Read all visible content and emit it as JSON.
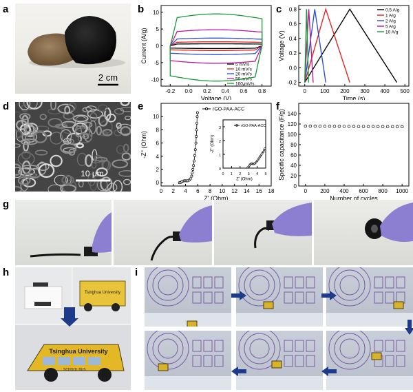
{
  "panel_labels": [
    "a",
    "b",
    "c",
    "d",
    "e",
    "f",
    "g",
    "h",
    "i"
  ],
  "panel_a": {
    "scale_text": "2 cm"
  },
  "panel_d": {
    "scale_text": "10 μm"
  },
  "panel_h": {
    "bus_text": "Tsinghua University",
    "small_bus_text": "Tsinghua University",
    "bus_side_text": "SCHOOL BUS"
  },
  "chart_data": [
    {
      "id": "b",
      "type": "line",
      "xlabel": "Voltage (V)",
      "ylabel": "Current (A/g)",
      "xlim": [
        -0.3,
        0.9
      ],
      "ylim": [
        -12,
        12
      ],
      "xticks": [
        "-0.2",
        "0.0",
        "0.2",
        "0.4",
        "0.6",
        "0.8"
      ],
      "yticks": [
        "-10",
        "-5",
        "0",
        "5",
        "10"
      ],
      "series": [
        {
          "name": "5 mV/s",
          "color": "#000000",
          "upper": 0.6,
          "lower": -0.8
        },
        {
          "name": "10 mV/s",
          "color": "#e8201c",
          "upper": 1.2,
          "lower": -1.4
        },
        {
          "name": "20 mV/s",
          "color": "#2a4fd6",
          "upper": 2.3,
          "lower": -2.6
        },
        {
          "name": "50 mV/s",
          "color": "#c2189f",
          "upper": 4.8,
          "lower": -5.2
        },
        {
          "name": "100 mV/s",
          "color": "#1a9a36",
          "upper": 9.5,
          "lower": -10.5
        }
      ]
    },
    {
      "id": "c",
      "type": "line",
      "xlabel": "Time (s)",
      "ylabel": "Voltage (V)",
      "xlim": [
        -30,
        520
      ],
      "ylim": [
        -0.25,
        0.85
      ],
      "xticks": [
        "0",
        "100",
        "200",
        "300",
        "400",
        "500"
      ],
      "yticks": [
        "-0.2",
        "0.0",
        "0.2",
        "0.4",
        "0.6",
        "0.8"
      ],
      "series": [
        {
          "name": "0.5 A/g",
          "color": "#000000",
          "t_peak": 225,
          "t_end": 460
        },
        {
          "name": "1 A/g",
          "color": "#e8201c",
          "t_peak": 105,
          "t_end": 225
        },
        {
          "name": "2 A/g",
          "color": "#2a4fd6",
          "t_peak": 50,
          "t_end": 105
        },
        {
          "name": "5 A/g",
          "color": "#c2189f",
          "t_peak": 20,
          "t_end": 42
        },
        {
          "name": "10 A/g",
          "color": "#1a9a36",
          "t_peak": 9,
          "t_end": 19
        }
      ]
    },
    {
      "id": "e",
      "type": "scatter",
      "xlabel": "Z' (Ohm)",
      "ylabel": "-Z\" (Ohm)",
      "xlim": [
        0,
        18
      ],
      "ylim": [
        -0.5,
        12
      ],
      "xticks": [
        "0",
        "2",
        "4",
        "6",
        "8",
        "10",
        "12",
        "14",
        "16",
        "18"
      ],
      "yticks": [
        "0",
        "2",
        "4",
        "6",
        "8",
        "10"
      ],
      "legend": "rGO-PAA-ACC",
      "points": [
        [
          3.0,
          0.0
        ],
        [
          3.2,
          0.05
        ],
        [
          3.4,
          0.15
        ],
        [
          3.6,
          0.25
        ],
        [
          3.8,
          0.3
        ],
        [
          4.0,
          0.3
        ],
        [
          4.2,
          0.28
        ],
        [
          4.4,
          0.3
        ],
        [
          4.6,
          0.4
        ],
        [
          4.8,
          0.6
        ],
        [
          5.0,
          1.0
        ],
        [
          5.1,
          1.5
        ],
        [
          5.2,
          2.0
        ],
        [
          5.3,
          2.6
        ],
        [
          5.4,
          3.3
        ],
        [
          5.5,
          4.1
        ],
        [
          5.6,
          5.0
        ],
        [
          5.7,
          6.0
        ],
        [
          5.75,
          7.0
        ],
        [
          5.8,
          8.0
        ],
        [
          5.85,
          9.0
        ],
        [
          5.9,
          10.0
        ],
        [
          5.95,
          10.6
        ]
      ],
      "inset": {
        "xlabel": "Z' (Ohm)",
        "ylabel": "-Z\" (Ohm)",
        "xlim": [
          0,
          5
        ],
        "ylim": [
          0,
          3.5
        ],
        "xticks": [
          "0",
          "1",
          "2",
          "3",
          "4",
          "5"
        ],
        "yticks": [
          "0",
          "1",
          "2",
          "3"
        ],
        "legend": "rGO-PAA-ACC",
        "points": [
          [
            2.9,
            0.05
          ],
          [
            3.0,
            0.1
          ],
          [
            3.1,
            0.2
          ],
          [
            3.2,
            0.28
          ],
          [
            3.3,
            0.32
          ],
          [
            3.4,
            0.33
          ],
          [
            3.5,
            0.3
          ],
          [
            3.6,
            0.3
          ],
          [
            3.7,
            0.32
          ],
          [
            3.8,
            0.38
          ],
          [
            3.9,
            0.45
          ],
          [
            4.0,
            0.52
          ],
          [
            4.1,
            0.6
          ],
          [
            4.2,
            0.7
          ],
          [
            4.3,
            0.8
          ],
          [
            4.4,
            0.88
          ],
          [
            4.5,
            0.98
          ],
          [
            4.6,
            1.08
          ],
          [
            4.7,
            1.18
          ],
          [
            4.8,
            1.3
          ],
          [
            4.9,
            1.42
          ]
        ]
      }
    },
    {
      "id": "f",
      "type": "scatter",
      "xlabel": "Number of cycles",
      "ylabel": "Specific capacitance (F/g)",
      "xlim": [
        -70,
        1070
      ],
      "ylim": [
        0,
        160
      ],
      "xticks": [
        "0",
        "200",
        "400",
        "600",
        "800",
        "1000"
      ],
      "yticks": [
        "0",
        "20",
        "40",
        "60",
        "80",
        "100",
        "120",
        "140"
      ],
      "x": [
        0,
        50,
        100,
        150,
        200,
        250,
        300,
        350,
        400,
        450,
        500,
        550,
        600,
        650,
        700,
        750,
        800,
        850,
        900,
        950,
        1000
      ],
      "y": [
        116,
        116,
        115.8,
        115.7,
        115.6,
        115.6,
        115.5,
        115.5,
        115.4,
        115.3,
        115.3,
        115.2,
        115.2,
        115.1,
        115.1,
        115.0,
        115.0,
        114.9,
        114.9,
        114.8,
        114.8
      ]
    }
  ]
}
